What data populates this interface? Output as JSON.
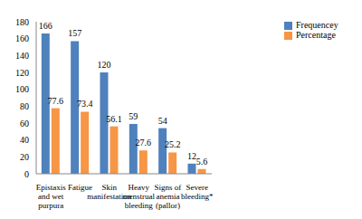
{
  "chart_data": {
    "type": "bar",
    "categories": [
      "Epistaxis and wet purpura",
      "Fatigue",
      "Skin manifestation",
      "Heavy menstrual bleeding",
      "Signs of anemia (pallor)",
      "Severe bleeding*"
    ],
    "series": [
      {
        "name": "Frequencey",
        "color": "#4f81bd",
        "values": [
          166,
          157,
          120,
          59,
          54,
          12
        ]
      },
      {
        "name": "Percentage",
        "color": "#f79646",
        "values": [
          77.6,
          73.4,
          56.1,
          27.6,
          25.2,
          5.6
        ]
      }
    ],
    "ylim": [
      0,
      180
    ],
    "yticks": [
      0,
      20,
      40,
      60,
      80,
      100,
      120,
      140,
      160,
      180
    ],
    "grid": false,
    "legend": "upper right",
    "data_labels": true
  }
}
